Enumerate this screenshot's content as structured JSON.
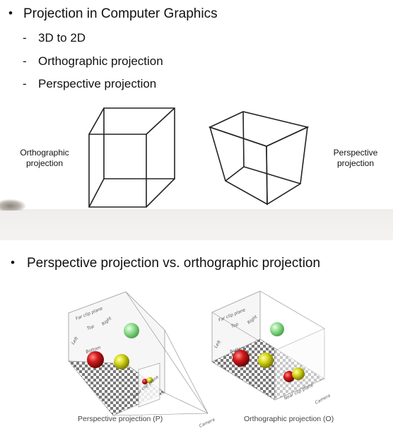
{
  "slide1": {
    "title": "Projection in Computer Graphics",
    "bullet_char": "•",
    "subitems": [
      {
        "dash": "-",
        "text": "3D to 2D"
      },
      {
        "dash": "-",
        "text": "Orthographic projection"
      },
      {
        "dash": "-",
        "text": "Perspective projection"
      }
    ],
    "left_caption_line1": "Orthographic",
    "left_caption_line2": "projection",
    "right_caption_line1": "Perspective",
    "right_caption_line2": "projection"
  },
  "slide2": {
    "title": "Perspective projection vs. orthographic projection",
    "bullet_char": "•",
    "figure_left": {
      "caption": "Perspective projection (P)",
      "far": "Far clip plane",
      "near": "Near clip plane",
      "top": "Top",
      "right": "Right",
      "left": "Left",
      "bottom": "Bottom",
      "camera": "Camera"
    },
    "figure_right": {
      "caption": "Orthographic projection (O)",
      "far": "Far clip plane",
      "near": "Near clip plane",
      "top": "Top",
      "right": "Right",
      "left": "Left",
      "bottom": "Bottom",
      "camera": "Camera"
    }
  }
}
